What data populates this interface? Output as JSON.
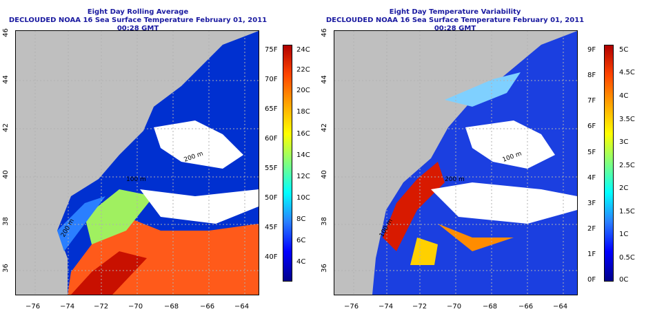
{
  "left_panel": {
    "title_line1": "Eight Day Rolling Average",
    "title_line2": "DECLOUDED NOAA 16 Sea Surface Temperature February 01, 2011 00:28 GMT",
    "colorbar_f_labels": [
      "75F",
      "70F",
      "65F",
      "60F",
      "55F",
      "50F",
      "45F",
      "40F"
    ],
    "colorbar_c_labels": [
      "24C",
      "22C",
      "20C",
      "18C",
      "16C",
      "14C",
      "12C",
      "10C",
      "8C",
      "6C",
      "4C"
    ],
    "colors": [
      "#00008b",
      "#0000ff",
      "#2a7fff",
      "#00ffff",
      "#7fff7f",
      "#ffff00",
      "#ffa500",
      "#ff4500",
      "#b00000"
    ]
  },
  "right_panel": {
    "title_line1": "Eight Day Temperature Variability",
    "title_line2": "DECLOUDED NOAA 16 Sea Surface Temperature February 01, 2011 00:28 GMT",
    "colorbar_f_labels": [
      "9F",
      "8F",
      "7F",
      "6F",
      "5F",
      "4F",
      "3F",
      "2F",
      "1F",
      "0F"
    ],
    "colorbar_c_labels": [
      "5C",
      "4.5C",
      "4C",
      "3.5C",
      "3C",
      "2.5C",
      "2C",
      "1.5C",
      "1C",
      "0.5C",
      "0C"
    ],
    "colors": [
      "#00008b",
      "#0000ff",
      "#2a7fff",
      "#00ffff",
      "#7fff7f",
      "#ffff00",
      "#ffa500",
      "#ff4500",
      "#b00000"
    ]
  },
  "axes": {
    "x_ticks": [
      "−76",
      "−74",
      "−72",
      "−70",
      "−68",
      "−66",
      "−64"
    ],
    "y_ticks": [
      "36",
      "38",
      "40",
      "42",
      "44",
      "46"
    ]
  },
  "contour_labels": [
    "200 m",
    "100 m",
    "200 m",
    "100 m",
    "200 m",
    "100 m"
  ],
  "theme": {
    "title_color": "#1a1aa0",
    "land_color": "#bfbfbf",
    "cloud_color": "#ffffff"
  }
}
